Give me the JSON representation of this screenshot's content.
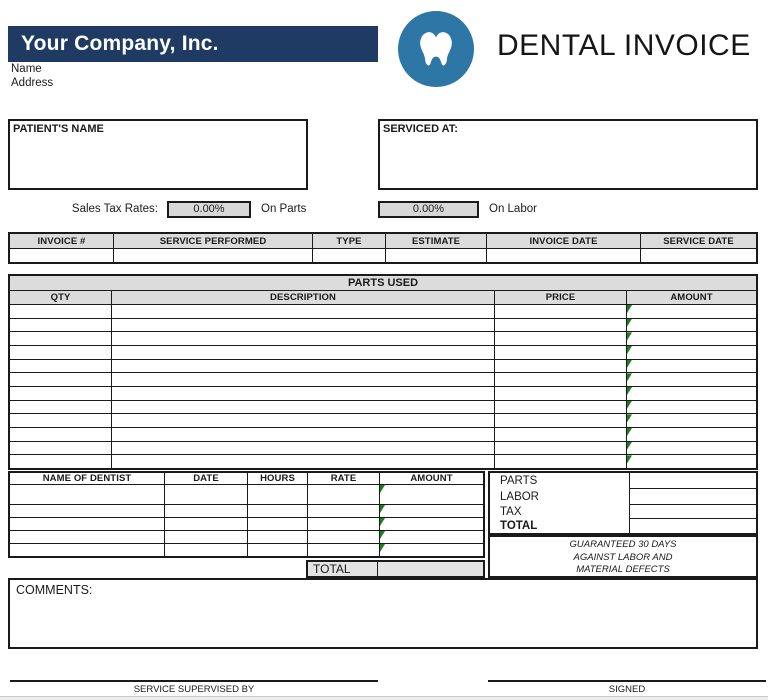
{
  "company": {
    "name": "Your Company, Inc.",
    "line1": "Name",
    "line2": "Address"
  },
  "header": {
    "title": "DENTAL INVOICE",
    "logo_icon": "tooth-icon"
  },
  "patient_box": {
    "label": "PATIENT'S NAME"
  },
  "serviced_box": {
    "label": "SERVICED AT:"
  },
  "sales_tax": {
    "label": "Sales Tax Rates:",
    "parts_rate": "0.00%",
    "parts_suffix": "On Parts",
    "labor_rate": "0.00%",
    "labor_suffix": "On Labor"
  },
  "invoice_table": {
    "headers": [
      "INVOICE #",
      "SERVICE PERFORMED",
      "TYPE",
      "ESTIMATE",
      "INVOICE DATE",
      "SERVICE DATE"
    ]
  },
  "parts_table": {
    "title": "PARTS USED",
    "headers": [
      "QTY",
      "DESCRIPTION",
      "PRICE",
      "AMOUNT"
    ],
    "row_count": 12
  },
  "labor_table": {
    "headers": [
      "NAME OF DENTIST",
      "DATE",
      "HOURS",
      "RATE",
      "AMOUNT"
    ],
    "row_count": 5,
    "total_label": "TOTAL"
  },
  "summary": {
    "items": [
      {
        "label": "PARTS",
        "bold": false
      },
      {
        "label": "LABOR",
        "bold": false
      },
      {
        "label": "TAX",
        "bold": false
      },
      {
        "label": "TOTAL",
        "bold": true
      }
    ]
  },
  "guarantee": {
    "lines": [
      "GUARANTEED 30 DAYS",
      "AGAINST LABOR AND",
      "MATERIAL DEFECTS"
    ]
  },
  "comments": {
    "label": "COMMENTS:"
  },
  "signatures": {
    "left": "SERVICE SUPERVISED BY",
    "right": "SIGNED"
  },
  "colors": {
    "navy_bar": "#1F3B63",
    "logo_blue": "#2E76A6",
    "header_gray": "#DCDCDC",
    "field_gray": "#D8D8D8",
    "total_gray": "#E4E4E4",
    "indicator_green": "#1E7E1E",
    "border": "#1A1A1A"
  }
}
